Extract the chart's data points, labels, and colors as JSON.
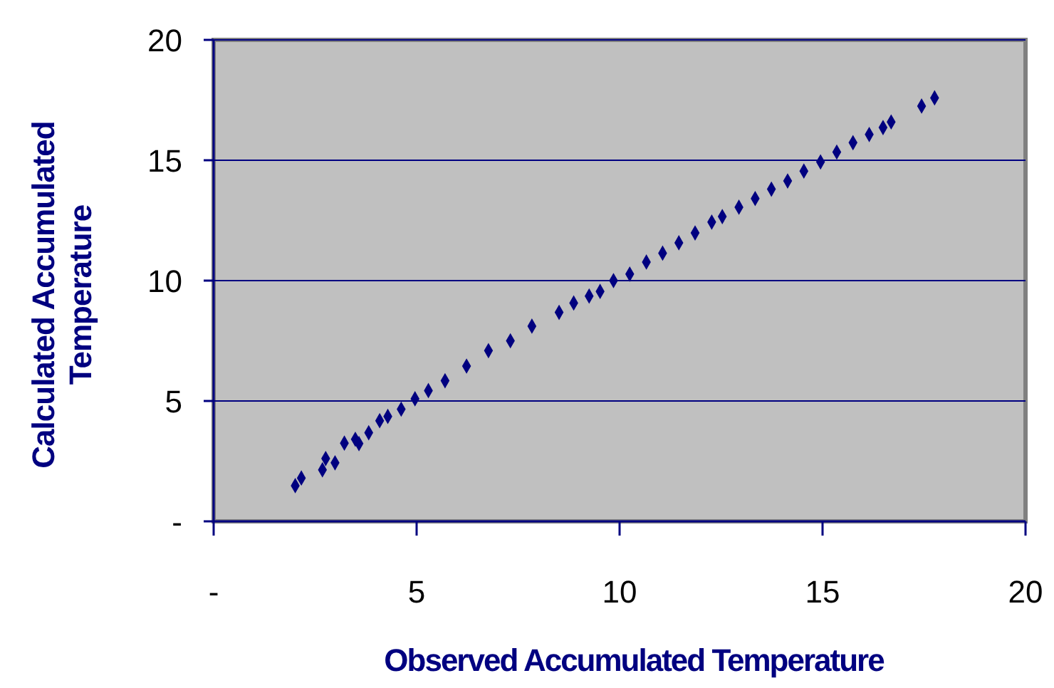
{
  "chart_data": {
    "type": "scatter",
    "xlabel": "Observed Accumulated Temperature",
    "ylabel": "Calculated Accumulated Temperature",
    "xlim": [
      0,
      20
    ],
    "ylim": [
      0,
      20
    ],
    "xticks": [
      {
        "value": 0,
        "label": "-"
      },
      5,
      10,
      15,
      20
    ],
    "yticks": [
      {
        "value": 0,
        "label": "-"
      },
      5,
      10,
      15,
      20
    ],
    "grid": "y",
    "marker": "diamond",
    "series": [
      {
        "color": "#000080",
        "x": [
          2.01,
          2.16,
          2.68,
          2.76,
          2.99,
          3.22,
          3.49,
          3.58,
          3.82,
          4.09,
          4.29,
          4.62,
          4.96,
          5.29,
          5.7,
          6.23,
          6.77,
          7.31,
          7.84,
          8.51,
          8.87,
          9.25,
          9.52,
          9.85,
          10.25,
          10.66,
          11.06,
          11.46,
          11.86,
          12.27,
          12.53,
          12.94,
          13.34,
          13.74,
          14.14,
          14.54,
          14.95,
          15.35,
          15.75,
          16.15,
          16.49,
          16.69,
          17.44,
          17.76
        ],
        "values": [
          1.48,
          1.8,
          2.14,
          2.61,
          2.43,
          3.25,
          3.41,
          3.23,
          3.68,
          4.18,
          4.36,
          4.66,
          5.09,
          5.43,
          5.84,
          6.45,
          7.09,
          7.5,
          8.11,
          8.68,
          9.07,
          9.36,
          9.55,
          10.0,
          10.27,
          10.77,
          11.14,
          11.57,
          11.98,
          12.43,
          12.66,
          13.05,
          13.41,
          13.8,
          14.14,
          14.55,
          14.93,
          15.34,
          15.73,
          16.07,
          16.36,
          16.59,
          17.25,
          17.59
        ]
      }
    ]
  }
}
